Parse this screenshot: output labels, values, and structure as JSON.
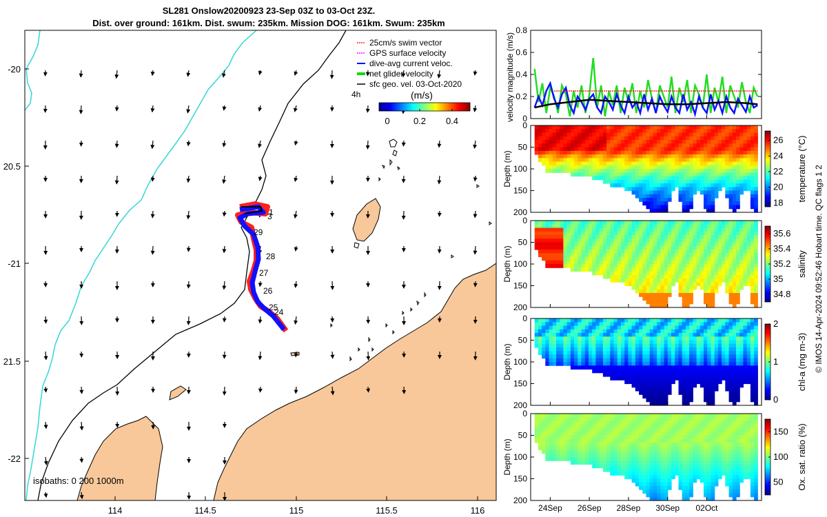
{
  "title_line1": "SL281 Onslow20200923 23-Sep 03Z to 03-Oct 23Z.",
  "title_line2": "Dist. over ground: 161km. Dist. swum: 235km. Mission DOG: 161km. Swum: 235km",
  "colors": {
    "land": "#f8c89a",
    "coastline": "#000000",
    "isobath_200": "#000000",
    "isobath_1000": "#33d6d6",
    "track_gps": "#ff2020",
    "track_current": "#1010ff",
    "net_velocity": "#22dd22",
    "sfc_geo_vector": "#000000",
    "swim_threshold": "#ff2020",
    "dive_avg_mean": "#000000"
  },
  "map": {
    "legend_items": [
      {
        "label": "25cm/s swim vector",
        "color": "#ff2020"
      },
      {
        "label": "GPS surface velocity",
        "color": "#ff00ff"
      },
      {
        "label": "dive-avg current veloc.",
        "color": "#0000ff"
      },
      {
        "label": "net glider velocity",
        "color": "#00dd00"
      },
      {
        "label": "sfc geo. vel. 03-Oct-2020",
        "color": "#000000"
      }
    ],
    "time_label": "4h",
    "colorbar_title": "(m/s)",
    "colorbar_ticks": [
      "0",
      "0.2",
      "0.4"
    ],
    "isobath_label": "isobaths: 0   200  1000m",
    "track_day_labels": [
      "3",
      "29",
      "28",
      "27",
      "26",
      "25",
      "24",
      "1"
    ]
  },
  "chart_data": [
    {
      "type": "map",
      "xlabel": "",
      "ylabel": "",
      "xlim": [
        113.5,
        116.1
      ],
      "ylim": [
        -22.2,
        -19.8
      ],
      "x_ticks": [
        114,
        114.5,
        115,
        115.5,
        116
      ],
      "x_tick_labels": [
        "114",
        "114.5",
        "115",
        "115.5",
        "116"
      ],
      "y_ticks": [
        -20,
        -20.5,
        -21,
        -21.5,
        -22
      ],
      "y_tick_labels": [
        "-20",
        "20.5",
        "-21",
        "21.5",
        "-22"
      ],
      "glider_track": {
        "lon": [
          114.75,
          114.82,
          114.78,
          114.73,
          114.7,
          114.74,
          114.74,
          114.73,
          114.72,
          114.75,
          114.82,
          114.86,
          114.93
        ],
        "lat": [
          -20.72,
          -20.77,
          -20.8,
          -20.76,
          -20.86,
          -20.9,
          -21.0,
          -21.08,
          -21.14,
          -21.22,
          -21.27,
          -21.29,
          -21.35
        ]
      }
    },
    {
      "type": "line",
      "ylabel": "velocity magnitude (m/s)",
      "ylim": [
        0,
        0.8
      ],
      "y_ticks": [
        "0",
        "0.2",
        "0.4",
        "0.6",
        "0.8"
      ],
      "xlim_days": [
        23.0,
        34.8
      ],
      "series": [
        {
          "name": "net glider velocity",
          "x": [
            23.2,
            23.4,
            23.6,
            23.8,
            24.0,
            24.2,
            24.4,
            24.6,
            24.8,
            25.0,
            25.2,
            25.4,
            25.6,
            25.8,
            26.0,
            26.2,
            26.4,
            26.6,
            26.8,
            27.0,
            27.2,
            27.4,
            27.6,
            27.8,
            28.0,
            28.2,
            28.4,
            28.6,
            28.8,
            29.0,
            29.2,
            29.4,
            29.6,
            29.8,
            30.0,
            30.2,
            30.4,
            30.6,
            30.8,
            31.0,
            31.2,
            31.4,
            31.6,
            31.8,
            32.0,
            32.2,
            32.4,
            32.6,
            32.8,
            33.0,
            33.2,
            33.4,
            33.6,
            33.8,
            34.0,
            34.2,
            34.4,
            34.6
          ],
          "values": [
            0.45,
            0.15,
            0.32,
            0.05,
            0.28,
            0.2,
            0.05,
            0.3,
            0.22,
            0.02,
            0.25,
            0.1,
            0.3,
            0.05,
            0.22,
            0.55,
            0.1,
            0.3,
            0.02,
            0.25,
            0.12,
            0.3,
            0.05,
            0.28,
            0.15,
            0.32,
            0.05,
            0.25,
            0.1,
            0.35,
            0.18,
            0.05,
            0.3,
            0.2,
            0.1,
            0.38,
            0.05,
            0.28,
            0.15,
            0.35,
            0.05,
            0.3,
            0.22,
            0.1,
            0.4,
            0.05,
            0.28,
            0.15,
            0.38,
            0.05,
            0.3,
            0.2,
            0.1,
            0.33,
            0.15,
            0.05,
            0.28,
            0.2
          ]
        },
        {
          "name": "dive-avg current veloc.",
          "x": [
            23.2,
            23.4,
            23.6,
            23.8,
            24.0,
            24.2,
            24.4,
            24.6,
            24.8,
            25.0,
            25.2,
            25.4,
            25.6,
            25.8,
            26.0,
            26.2,
            26.4,
            26.6,
            26.8,
            27.0,
            27.2,
            27.4,
            27.6,
            27.8,
            28.0,
            28.2,
            28.4,
            28.6,
            28.8,
            29.0,
            29.2,
            29.4,
            29.6,
            29.8,
            30.0,
            30.2,
            30.4,
            30.6,
            30.8,
            31.0,
            31.2,
            31.4,
            31.6,
            31.8,
            32.0,
            32.2,
            32.4,
            32.6,
            32.8,
            33.0,
            33.2,
            33.4,
            33.6,
            33.8,
            34.0,
            34.2,
            34.4,
            34.6
          ],
          "values": [
            0.1,
            0.2,
            0.12,
            0.25,
            0.32,
            0.18,
            0.1,
            0.22,
            0.28,
            0.12,
            0.05,
            0.2,
            0.15,
            0.08,
            0.18,
            0.22,
            0.1,
            0.05,
            0.2,
            0.15,
            0.08,
            0.22,
            0.12,
            0.05,
            0.2,
            0.1,
            0.15,
            0.05,
            0.22,
            0.08,
            0.18,
            0.05,
            0.2,
            0.12,
            0.06,
            0.2,
            0.1,
            0.05,
            0.22,
            0.08,
            0.15,
            0.04,
            0.2,
            0.1,
            0.05,
            0.22,
            0.08,
            0.16,
            0.05,
            0.2,
            0.1,
            0.05,
            0.18,
            0.12,
            0.06,
            0.2,
            0.1,
            0.12
          ]
        },
        {
          "name": "mean velocity",
          "x": [
            23.2,
            24.0,
            25.0,
            26.0,
            27.0,
            28.0,
            29.0,
            30.0,
            31.0,
            32.0,
            33.0,
            34.0,
            34.6
          ],
          "values": [
            0.1,
            0.13,
            0.15,
            0.17,
            0.16,
            0.15,
            0.14,
            0.13,
            0.13,
            0.14,
            0.15,
            0.14,
            0.13
          ]
        },
        {
          "name": "25cm/s swim vector",
          "x": [
            24.2,
            34.6
          ],
          "values": [
            0.25,
            0.25
          ]
        }
      ]
    },
    {
      "type": "heatmap",
      "ylabel": "Depth (m)",
      "colorbar_label": "temperature (°C)",
      "colorbar_ticks": [
        "18",
        "20",
        "22",
        "24",
        "26"
      ],
      "vmin": 17.5,
      "vmax": 27.2,
      "y_ticks": [
        "0",
        "50",
        "100",
        "150",
        "200"
      ],
      "ylim": [
        200,
        0
      ],
      "surface_value": 25.5,
      "deep_value": 18.2
    },
    {
      "type": "heatmap",
      "ylabel": "Depth (m)",
      "colorbar_label": "salinity",
      "colorbar_ticks": [
        "34.8",
        "35",
        "35.2",
        "35.4",
        "35.6"
      ],
      "vmin": 34.7,
      "vmax": 35.7,
      "y_ticks": [
        "0",
        "50",
        "100",
        "150",
        "200"
      ],
      "ylim": [
        200,
        0
      ],
      "surface_value": 35.15,
      "deep_value": 35.35
    },
    {
      "type": "heatmap",
      "ylabel": "Depth (m)",
      "colorbar_label": "chl-a (mg m-3)",
      "colorbar_ticks": [
        "0",
        "1",
        "2"
      ],
      "vmin": 0,
      "vmax": 2,
      "y_ticks": [
        "0",
        "50",
        "100",
        "150",
        "200"
      ],
      "ylim": [
        200,
        0
      ],
      "surface_value": 0.8,
      "deep_value": 0.05
    },
    {
      "type": "heatmap",
      "ylabel": "Depth (m)",
      "colorbar_label": "Ox. sat. ratio (%)",
      "colorbar_ticks": [
        "50",
        "100",
        "150"
      ],
      "vmin": 25,
      "vmax": 175,
      "y_ticks": [
        "0",
        "50",
        "100",
        "150",
        "200"
      ],
      "ylim": [
        200,
        0
      ],
      "surface_value": 105,
      "deep_value": 68
    }
  ],
  "time_axis": {
    "tick_days": [
      24,
      26,
      28,
      30,
      32
    ],
    "tick_labels": [
      "24Sep",
      "26Sep",
      "28Sep",
      "30Sep",
      "02Oct"
    ]
  },
  "bottom_depth_profile": {
    "x_days": [
      23.2,
      23.8,
      24.4,
      25.0,
      25.6,
      26.2,
      26.8,
      27.2,
      27.6,
      28.0,
      28.4,
      28.8,
      29.2,
      29.6,
      29.9,
      30.2,
      30.5,
      30.8,
      31.1,
      31.4,
      31.7,
      32.0,
      32.3,
      32.6,
      32.9,
      33.2,
      33.5,
      33.8,
      34.1,
      34.4,
      34.6
    ],
    "depth_m": [
      55,
      100,
      105,
      108,
      112,
      118,
      128,
      135,
      140,
      146,
      160,
      175,
      195,
      200,
      200,
      150,
      140,
      200,
      200,
      150,
      140,
      200,
      200,
      145,
      135,
      190,
      200,
      150,
      140,
      200,
      200
    ]
  },
  "side_credit": "© IMOS 14-Apr-2024 09:52:46 Hobart time. QC flags 1  2"
}
